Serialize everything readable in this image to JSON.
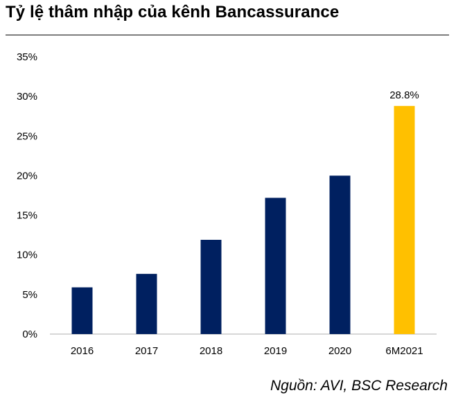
{
  "title": "Tỷ lệ thâm nhập của kênh Bancassurance",
  "source": "Nguồn: AVI, BSC Research",
  "colors": {
    "primary": "#002060",
    "highlight": "#FFC000",
    "axis": "#BFBFBF"
  },
  "chart_data": {
    "type": "bar",
    "title": "Tỷ lệ thâm nhập của kênh Bancassurance",
    "xlabel": "",
    "ylabel": "",
    "categories": [
      "2016",
      "2017",
      "2018",
      "2019",
      "2020",
      "6M2021"
    ],
    "values": [
      5.9,
      7.6,
      11.9,
      17.2,
      20.0,
      28.8
    ],
    "highlight_index": 5,
    "y_ticks": [
      0,
      5,
      10,
      15,
      20,
      25,
      30,
      35
    ],
    "y_tick_labels": [
      "0%",
      "5%",
      "10%",
      "15%",
      "20%",
      "25%",
      "30%",
      "35%"
    ],
    "ylim": [
      0,
      35
    ],
    "data_labels": [
      {
        "index": 5,
        "text": "28.8%"
      }
    ],
    "grid": false,
    "legend": "none"
  }
}
